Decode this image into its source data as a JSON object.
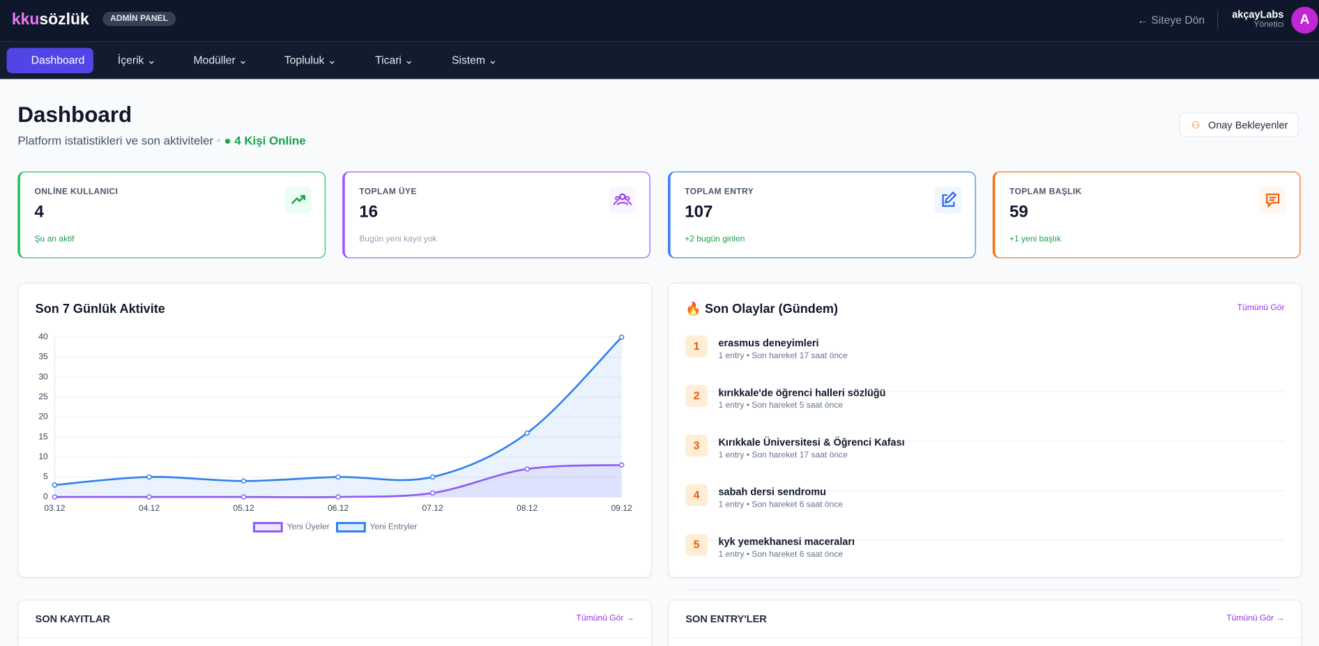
{
  "header": {
    "logo_a": "kku",
    "logo_b": "sözlük",
    "badge": "ADMİN PANEL",
    "back": "Siteye Dön",
    "user": "akçayLabs",
    "role": "Yönetici",
    "avatar": "A"
  },
  "nav": [
    "Dashboard",
    "İçerik",
    "Modüller",
    "Topluluk",
    "Ticari",
    "Sistem"
  ],
  "page": {
    "title": "Dashboard",
    "subtitle": "Platform istatistikleri ve son aktiviteler",
    "online": "4 Kişi Online",
    "button": "Onay Bekleyenler"
  },
  "stats": [
    {
      "label": "ONLİNE KULLANICI",
      "value": 4,
      "note": "Şu an aktif"
    },
    {
      "label": "TOPLAM ÜYE",
      "value": 16,
      "note": "Bugün yeni kayıt yok"
    },
    {
      "label": "TOPLAM ENTRY",
      "value": 107,
      "note": "+2 bugün girilen"
    },
    {
      "label": "TOPLAM BAŞLIK",
      "value": 59,
      "note": "+1 yeni başlık"
    }
  ],
  "chart_data": {
    "type": "line",
    "title": "Son 7 Günlük Aktivite",
    "categories": [
      "03.12",
      "04.12",
      "05.12",
      "06.12",
      "07.12",
      "08.12",
      "09.12"
    ],
    "series": [
      {
        "name": "Yeni Üyeler",
        "color": "#8b5cf6",
        "values": [
          0,
          0,
          0,
          0,
          1,
          7,
          8
        ]
      },
      {
        "name": "Yeni Entryler",
        "color": "#2f80ed",
        "values": [
          3,
          5,
          4,
          5,
          5,
          16,
          40
        ]
      }
    ],
    "ylim": [
      0,
      40
    ],
    "yticks": [
      0,
      5,
      10,
      15,
      20,
      25,
      30,
      35,
      40
    ],
    "grid": true,
    "legend": "bottom"
  },
  "events": {
    "title": "🔥 Son Olaylar (Gündem)",
    "link": "Tümünü Gör",
    "items": [
      {
        "rank": 1,
        "title": "erasmus deneyimleri",
        "meta": "1 entry • Son hareket 17 saat önce"
      },
      {
        "rank": 2,
        "title": "kırıkkale'de öğrenci halleri sözlüğü",
        "meta": "1 entry • Son hareket 5 saat önce"
      },
      {
        "rank": 3,
        "title": "Kırıkkale Üniversitesi & Öğrenci Kafası",
        "meta": "1 entry • Son hareket 17 saat önce"
      },
      {
        "rank": 4,
        "title": "sabah dersi sendromu",
        "meta": "1 entry • Son hareket 6 saat önce"
      },
      {
        "rank": 5,
        "title": "kyk yemekhanesi maceraları",
        "meta": "1 entry • Son hareket 6 saat önce"
      }
    ]
  },
  "bottom": [
    {
      "title": "SON KAYITLAR",
      "link": "Tümünü Gör →"
    },
    {
      "title": "SON ENTRY'LER",
      "link": "Tümünü Gör →"
    }
  ]
}
